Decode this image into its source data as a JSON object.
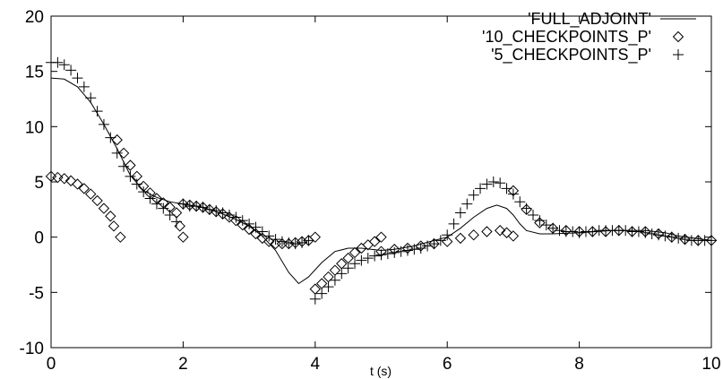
{
  "chart_data": {
    "type": "line",
    "title": "",
    "xlabel": "t (s)",
    "ylabel": "",
    "xlim": [
      0,
      10
    ],
    "ylim": [
      -10,
      20
    ],
    "x_ticks": [
      "0",
      "2",
      "4",
      "6",
      "8",
      "10"
    ],
    "y_ticks": [
      "-10",
      "-5",
      "0",
      "5",
      "10",
      "15",
      "20"
    ],
    "grid": false,
    "legend_position": "top-right",
    "series": [
      {
        "name": "'FULL_ADJOINT'",
        "style": "line",
        "points": [
          [
            0.0,
            14.4
          ],
          [
            0.2,
            14.3
          ],
          [
            0.4,
            13.6
          ],
          [
            0.6,
            12.2
          ],
          [
            0.8,
            10.2
          ],
          [
            1.0,
            8.0
          ],
          [
            1.2,
            5.6
          ],
          [
            1.4,
            4.2
          ],
          [
            1.6,
            3.6
          ],
          [
            1.8,
            3.2
          ],
          [
            2.0,
            3.0
          ],
          [
            2.2,
            2.8
          ],
          [
            2.4,
            2.5
          ],
          [
            2.6,
            2.1
          ],
          [
            2.8,
            1.6
          ],
          [
            3.0,
            1.0
          ],
          [
            3.2,
            0.1
          ],
          [
            3.4,
            -1.2
          ],
          [
            3.6,
            -3.2
          ],
          [
            3.75,
            -4.2
          ],
          [
            3.9,
            -3.6
          ],
          [
            4.1,
            -2.3
          ],
          [
            4.3,
            -1.3
          ],
          [
            4.5,
            -1.0
          ],
          [
            4.7,
            -1.0
          ],
          [
            5.0,
            -1.2
          ],
          [
            5.2,
            -1.1
          ],
          [
            5.5,
            -0.8
          ],
          [
            5.8,
            -0.3
          ],
          [
            6.0,
            0.0
          ],
          [
            6.2,
            0.8
          ],
          [
            6.4,
            1.8
          ],
          [
            6.6,
            2.6
          ],
          [
            6.75,
            2.9
          ],
          [
            6.9,
            2.6
          ],
          [
            7.0,
            2.0
          ],
          [
            7.1,
            1.2
          ],
          [
            7.2,
            0.6
          ],
          [
            7.4,
            0.3
          ],
          [
            7.6,
            0.3
          ],
          [
            8.0,
            0.4
          ],
          [
            8.5,
            0.6
          ],
          [
            9.0,
            0.6
          ],
          [
            9.3,
            0.4
          ],
          [
            9.5,
            0.1
          ],
          [
            10.0,
            -0.3
          ]
        ]
      },
      {
        "name": "'10_CHECKPOINTS_P'",
        "style": "diamond",
        "points": [
          [
            0.0,
            5.5
          ],
          [
            0.1,
            5.4
          ],
          [
            0.2,
            5.3
          ],
          [
            0.3,
            5.1
          ],
          [
            0.4,
            4.8
          ],
          [
            0.5,
            4.4
          ],
          [
            0.6,
            3.9
          ],
          [
            0.7,
            3.3
          ],
          [
            0.8,
            2.6
          ],
          [
            0.9,
            1.9
          ],
          [
            0.95,
            1.0
          ],
          [
            1.05,
            0.0
          ],
          [
            1.0,
            8.8
          ],
          [
            1.1,
            7.6
          ],
          [
            1.2,
            6.5
          ],
          [
            1.3,
            5.5
          ],
          [
            1.4,
            4.6
          ],
          [
            1.5,
            4.0
          ],
          [
            1.6,
            3.5
          ],
          [
            1.7,
            3.1
          ],
          [
            1.8,
            2.7
          ],
          [
            1.9,
            2.2
          ],
          [
            1.95,
            1.0
          ],
          [
            2.0,
            0.0
          ],
          [
            2.0,
            3.0
          ],
          [
            2.1,
            2.9
          ],
          [
            2.2,
            2.8
          ],
          [
            2.3,
            2.7
          ],
          [
            2.4,
            2.5
          ],
          [
            2.5,
            2.3
          ],
          [
            2.6,
            2.1
          ],
          [
            2.7,
            1.8
          ],
          [
            2.8,
            1.5
          ],
          [
            2.9,
            1.1
          ],
          [
            3.0,
            0.7
          ],
          [
            3.1,
            0.3
          ],
          [
            3.2,
            -0.1
          ],
          [
            3.3,
            -0.4
          ],
          [
            3.4,
            -0.6
          ],
          [
            3.5,
            -0.6
          ],
          [
            3.6,
            -0.6
          ],
          [
            3.7,
            -0.5
          ],
          [
            3.8,
            -0.4
          ],
          [
            3.9,
            -0.3
          ],
          [
            4.0,
            0.0
          ],
          [
            4.0,
            -4.7
          ],
          [
            4.1,
            -4.2
          ],
          [
            4.2,
            -3.6
          ],
          [
            4.3,
            -3.0
          ],
          [
            4.4,
            -2.4
          ],
          [
            4.5,
            -1.9
          ],
          [
            4.6,
            -1.4
          ],
          [
            4.7,
            -1.0
          ],
          [
            4.8,
            -0.7
          ],
          [
            4.9,
            -0.4
          ],
          [
            5.0,
            0.0
          ],
          [
            5.0,
            -1.3
          ],
          [
            5.2,
            -1.1
          ],
          [
            5.4,
            -1.0
          ],
          [
            5.6,
            -0.8
          ],
          [
            5.8,
            -0.6
          ],
          [
            6.0,
            -0.4
          ],
          [
            6.2,
            -0.1
          ],
          [
            6.4,
            0.2
          ],
          [
            6.6,
            0.5
          ],
          [
            6.8,
            0.6
          ],
          [
            6.9,
            0.4
          ],
          [
            7.0,
            0.1
          ],
          [
            7.0,
            4.2
          ],
          [
            7.2,
            2.5
          ],
          [
            7.4,
            1.3
          ],
          [
            7.6,
            0.8
          ],
          [
            7.8,
            0.6
          ],
          [
            8.0,
            0.5
          ],
          [
            8.2,
            0.5
          ],
          [
            8.4,
            0.5
          ],
          [
            8.6,
            0.6
          ],
          [
            8.8,
            0.5
          ],
          [
            9.0,
            0.5
          ],
          [
            9.2,
            0.3
          ],
          [
            9.4,
            0.0
          ],
          [
            9.6,
            -0.2
          ],
          [
            9.8,
            -0.3
          ],
          [
            10.0,
            -0.3
          ]
        ]
      },
      {
        "name": "'5_CHECKPOINTS_P'",
        "style": "plus",
        "points": [
          [
            0.0,
            15.8
          ],
          [
            0.1,
            15.8
          ],
          [
            0.2,
            15.6
          ],
          [
            0.3,
            15.1
          ],
          [
            0.4,
            14.4
          ],
          [
            0.5,
            13.6
          ],
          [
            0.6,
            12.6
          ],
          [
            0.7,
            11.4
          ],
          [
            0.8,
            10.2
          ],
          [
            0.9,
            9.0
          ],
          [
            1.0,
            7.6
          ],
          [
            1.1,
            6.4
          ],
          [
            1.2,
            5.5
          ],
          [
            1.3,
            4.8
          ],
          [
            1.4,
            4.1
          ],
          [
            1.5,
            3.5
          ],
          [
            1.6,
            3.0
          ],
          [
            1.7,
            2.6
          ],
          [
            1.8,
            2.0
          ],
          [
            1.9,
            1.4
          ],
          [
            2.0,
            3.0
          ],
          [
            2.1,
            2.8
          ],
          [
            2.2,
            2.8
          ],
          [
            2.3,
            2.7
          ],
          [
            2.4,
            2.5
          ],
          [
            2.5,
            2.4
          ],
          [
            2.6,
            2.2
          ],
          [
            2.7,
            2.0
          ],
          [
            2.8,
            1.8
          ],
          [
            2.9,
            1.5
          ],
          [
            3.0,
            1.2
          ],
          [
            3.1,
            0.9
          ],
          [
            3.2,
            0.5
          ],
          [
            3.3,
            0.1
          ],
          [
            3.4,
            -0.2
          ],
          [
            3.5,
            -0.4
          ],
          [
            3.6,
            -0.5
          ],
          [
            3.7,
            -0.6
          ],
          [
            3.8,
            -0.5
          ],
          [
            3.9,
            -0.3
          ],
          [
            4.0,
            -5.6
          ],
          [
            4.1,
            -5.1
          ],
          [
            4.2,
            -4.5
          ],
          [
            4.3,
            -3.9
          ],
          [
            4.4,
            -3.3
          ],
          [
            4.5,
            -2.8
          ],
          [
            4.6,
            -2.4
          ],
          [
            4.7,
            -2.1
          ],
          [
            4.8,
            -1.9
          ],
          [
            4.9,
            -1.7
          ],
          [
            5.0,
            -1.6
          ],
          [
            5.1,
            -1.5
          ],
          [
            5.2,
            -1.4
          ],
          [
            5.3,
            -1.3
          ],
          [
            5.4,
            -1.2
          ],
          [
            5.5,
            -1.1
          ],
          [
            5.6,
            -1.0
          ],
          [
            5.7,
            -0.8
          ],
          [
            5.8,
            -0.6
          ],
          [
            5.9,
            -0.3
          ],
          [
            6.0,
            0.2
          ],
          [
            6.1,
            1.2
          ],
          [
            6.2,
            2.2
          ],
          [
            6.3,
            3.0
          ],
          [
            6.4,
            3.8
          ],
          [
            6.5,
            4.4
          ],
          [
            6.6,
            4.8
          ],
          [
            6.7,
            5.0
          ],
          [
            6.8,
            4.9
          ],
          [
            6.9,
            4.4
          ],
          [
            7.0,
            3.9
          ],
          [
            7.1,
            3.2
          ],
          [
            7.2,
            2.6
          ],
          [
            7.3,
            2.0
          ],
          [
            7.4,
            1.5
          ],
          [
            7.5,
            1.1
          ],
          [
            7.6,
            0.8
          ],
          [
            7.7,
            0.6
          ],
          [
            7.8,
            0.5
          ],
          [
            7.9,
            0.5
          ],
          [
            8.0,
            0.4
          ],
          [
            8.1,
            0.5
          ],
          [
            8.2,
            0.5
          ],
          [
            8.3,
            0.6
          ],
          [
            8.4,
            0.6
          ],
          [
            8.5,
            0.6
          ],
          [
            8.6,
            0.6
          ],
          [
            8.7,
            0.6
          ],
          [
            8.8,
            0.5
          ],
          [
            8.9,
            0.5
          ],
          [
            9.0,
            0.4
          ],
          [
            9.1,
            0.3
          ],
          [
            9.2,
            0.2
          ],
          [
            9.3,
            0.1
          ],
          [
            9.4,
            0.0
          ],
          [
            9.5,
            -0.1
          ],
          [
            9.6,
            -0.2
          ],
          [
            9.7,
            -0.3
          ],
          [
            9.8,
            -0.3
          ],
          [
            9.9,
            -0.3
          ],
          [
            10.0,
            -0.3
          ]
        ]
      }
    ]
  }
}
